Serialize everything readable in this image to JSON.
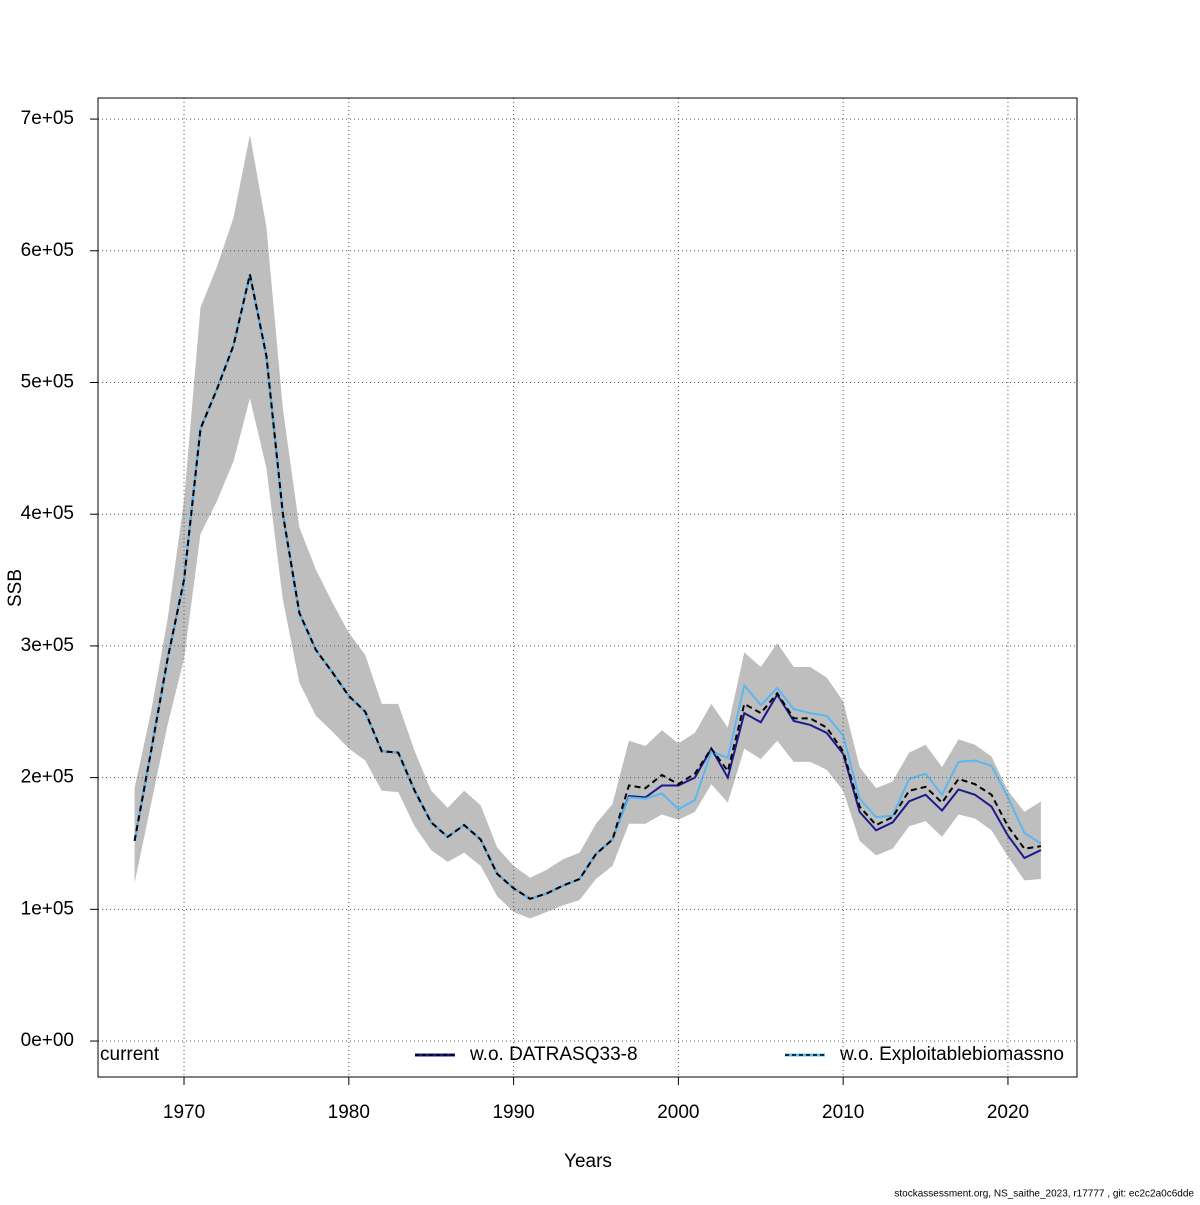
{
  "chart_data": {
    "type": "line",
    "x_label": "Years",
    "y_label": "SSB",
    "x": [
      1967,
      1968,
      1969,
      1970,
      1971,
      1972,
      1973,
      1974,
      1975,
      1976,
      1977,
      1978,
      1979,
      1980,
      1981,
      1982,
      1983,
      1984,
      1985,
      1986,
      1987,
      1988,
      1989,
      1990,
      1991,
      1992,
      1993,
      1994,
      1995,
      1996,
      1997,
      1998,
      1999,
      2000,
      2001,
      2002,
      2003,
      2004,
      2005,
      2006,
      2007,
      2008,
      2009,
      2010,
      2011,
      2012,
      2013,
      2014,
      2015,
      2016,
      2017,
      2018,
      2019,
      2020,
      2021,
      2022
    ],
    "band": {
      "color": "#bebebe",
      "lower": [
        120000,
        180000,
        240000,
        290000,
        385000,
        410000,
        440000,
        488000,
        435000,
        335000,
        272000,
        247000,
        235000,
        222000,
        213000,
        190000,
        189000,
        163000,
        145000,
        136000,
        143000,
        133000,
        110000,
        98000,
        93000,
        98000,
        103000,
        107000,
        123000,
        133000,
        165000,
        165000,
        172000,
        168000,
        174000,
        195000,
        181000,
        222000,
        214000,
        228000,
        212000,
        212000,
        206000,
        190000,
        152000,
        141000,
        146000,
        163000,
        167000,
        155000,
        172000,
        169000,
        160000,
        140000,
        122000,
        123000
      ],
      "upper": [
        192000,
        250000,
        320000,
        410000,
        557000,
        588000,
        625000,
        688000,
        618000,
        480000,
        390000,
        358000,
        333000,
        310000,
        293000,
        256000,
        256000,
        220000,
        190000,
        177000,
        190000,
        179000,
        147000,
        133000,
        124000,
        130000,
        138000,
        143000,
        165000,
        180000,
        228000,
        224000,
        236000,
        226000,
        234000,
        256000,
        238000,
        295000,
        284000,
        302000,
        284000,
        284000,
        276000,
        258000,
        208000,
        192000,
        197000,
        219000,
        225000,
        208000,
        229000,
        225000,
        216000,
        190000,
        174000,
        182000
      ]
    },
    "series": [
      {
        "name": "current",
        "color": "#000000",
        "dashed": true,
        "values": [
          152000,
          220000,
          290000,
          350000,
          465000,
          495000,
          528000,
          582000,
          520000,
          400000,
          325000,
          297000,
          280000,
          262000,
          250000,
          220000,
          219000,
          190000,
          166000,
          155000,
          164000,
          153000,
          127000,
          116000,
          108000,
          112000,
          118000,
          123000,
          142000,
          153000,
          194000,
          192000,
          202000,
          195000,
          203000,
          222000,
          205000,
          256000,
          249000,
          264000,
          245000,
          245000,
          238000,
          220000,
          178000,
          164000,
          170000,
          190000,
          193000,
          181000,
          199000,
          195000,
          187000,
          163000,
          146000,
          148000
        ]
      },
      {
        "name": "w.o. DATRASQ33-8",
        "color": "#1a1a8c",
        "dashed": false,
        "values": [
          152000,
          220000,
          290000,
          350000,
          465000,
          495000,
          528000,
          582000,
          520000,
          400000,
          325000,
          297000,
          280000,
          262000,
          250000,
          220000,
          219000,
          190000,
          166000,
          155000,
          164000,
          153000,
          127000,
          116000,
          108000,
          112000,
          118000,
          123000,
          142000,
          153000,
          186000,
          185000,
          194000,
          194000,
          200000,
          222000,
          200000,
          249000,
          242000,
          263000,
          243000,
          240000,
          234000,
          218000,
          174000,
          160000,
          166000,
          182000,
          187000,
          175000,
          191000,
          187000,
          178000,
          156000,
          139000,
          145000
        ]
      },
      {
        "name": "w.o. Exploitablebiomassno",
        "color": "#5ab8f0",
        "dashed": false,
        "values": [
          152000,
          220000,
          290000,
          350000,
          465000,
          495000,
          528000,
          582000,
          520000,
          400000,
          325000,
          297000,
          280000,
          262000,
          250000,
          220000,
          219000,
          190000,
          166000,
          155000,
          164000,
          153000,
          127000,
          116000,
          108000,
          112000,
          118000,
          123000,
          142000,
          153000,
          185000,
          184000,
          188000,
          176000,
          183000,
          220000,
          215000,
          270000,
          255000,
          268000,
          252000,
          249000,
          247000,
          232000,
          184000,
          170000,
          171000,
          199000,
          203000,
          187000,
          212000,
          213000,
          209000,
          185000,
          158000,
          150000
        ]
      }
    ],
    "xlim": [
      1964.78,
      2024.19
    ],
    "xticks": [
      1970,
      1980,
      1990,
      2000,
      2010,
      2020
    ],
    "ylim": [
      -27300,
      716000
    ],
    "yticks": [
      {
        "value": 0,
        "label": "0e+00"
      },
      {
        "value": 100000,
        "label": "1e+05"
      },
      {
        "value": 200000,
        "label": "2e+05"
      },
      {
        "value": 300000,
        "label": "3e+05"
      },
      {
        "value": 400000,
        "label": "4e+05"
      },
      {
        "value": 500000,
        "label": "5e+05"
      },
      {
        "value": 600000,
        "label": "6e+05"
      },
      {
        "value": 700000,
        "label": "7e+05"
      }
    ],
    "grid": true,
    "legend": "bottom",
    "footer": "stockassessment.org, NS_saithe_2023, r17777 , git: ec2c2a0c6dde"
  }
}
